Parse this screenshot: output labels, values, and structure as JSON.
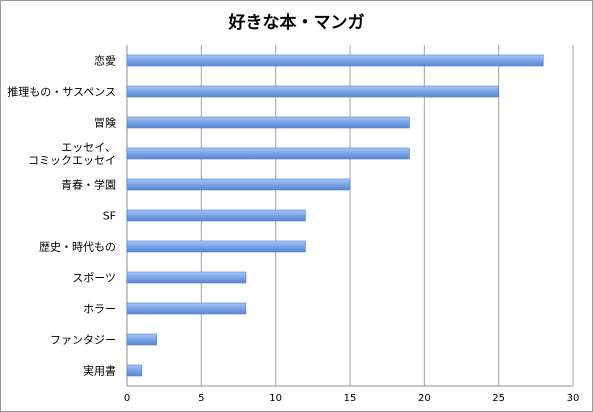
{
  "chart_data": {
    "type": "bar",
    "orientation": "horizontal",
    "title": "好きな本・マンガ",
    "categories": [
      [
        "恋愛"
      ],
      [
        "推理もの・サスペンス"
      ],
      [
        "冒険"
      ],
      [
        "エッセイ、",
        "コミックエッセイ"
      ],
      [
        "青春・学園"
      ],
      [
        "SF"
      ],
      [
        "歴史・時代もの"
      ],
      [
        "スポーツ"
      ],
      [
        "ホラー"
      ],
      [
        "ファンタジー"
      ],
      [
        "実用書"
      ]
    ],
    "values": [
      28,
      25,
      19,
      19,
      15,
      12,
      12,
      8,
      8,
      2,
      1
    ],
    "xlim": [
      0,
      30
    ],
    "xticks": [
      "0",
      "5",
      "10",
      "15",
      "20",
      "25",
      "30"
    ],
    "grid": "vertical",
    "bar_color": "#7aa3e6",
    "bar_edge_color": "#4f7fcf"
  }
}
